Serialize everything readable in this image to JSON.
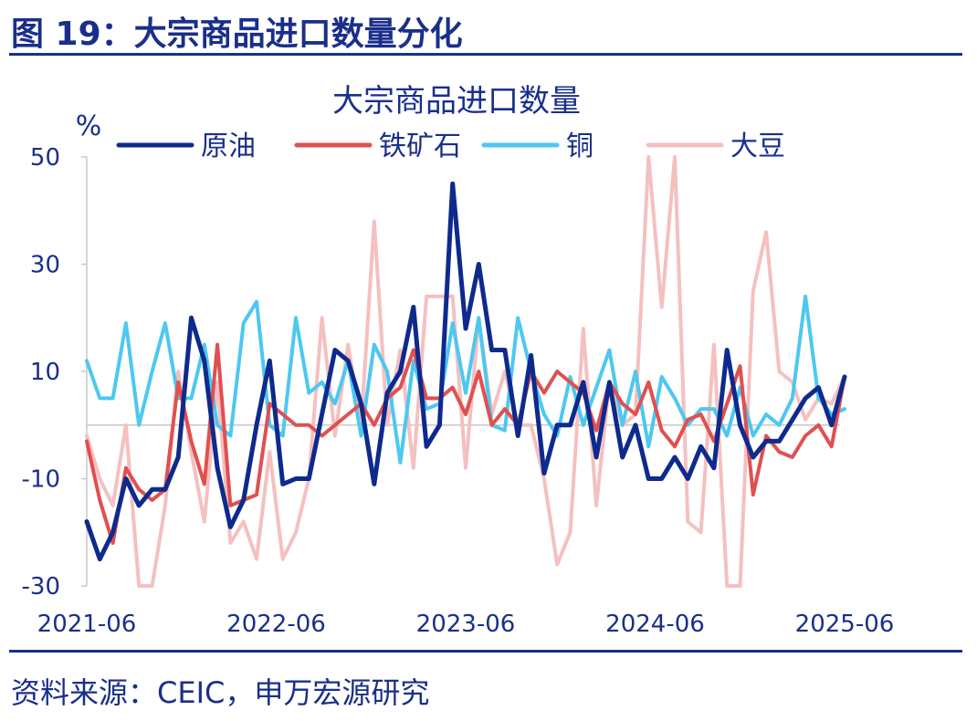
{
  "figure": {
    "title": "图 19：大宗商品进口数量分化",
    "source": "资料来源：CEIC，申万宏源研究"
  },
  "chart_data": {
    "type": "line",
    "title": "大宗商品进口数量",
    "ylabel": "%",
    "xlabel": "",
    "ylim": [
      -30,
      50
    ],
    "yticks": [
      50,
      30,
      10,
      -10,
      -30
    ],
    "xtick_labels": [
      "2021-06",
      "2022-06",
      "2023-06",
      "2024-06",
      "2025-06"
    ],
    "x_start": "2021-06",
    "x_end": "2025-06",
    "grid": false,
    "legend_position": "top",
    "series": [
      {
        "name": "原油",
        "color": "#0d2a8c",
        "width": 5,
        "values": [
          -18,
          -25,
          -20,
          -10,
          -15,
          -12,
          -12,
          -6,
          20,
          12,
          -8,
          -19,
          -14,
          0,
          12,
          -11,
          -10,
          -10,
          2,
          14,
          12,
          4,
          -11,
          6,
          10,
          22,
          -4,
          0,
          45,
          18,
          30,
          14,
          14,
          -2,
          13,
          -9,
          0,
          0,
          8,
          -6,
          8,
          -6,
          0,
          -10,
          -10,
          -6,
          -10,
          -4,
          -8,
          14,
          0,
          -6,
          -3,
          -3,
          1,
          5,
          7,
          0,
          9
        ]
      },
      {
        "name": "铁矿石",
        "color": "#e05050",
        "width": 4,
        "values": [
          -3,
          -14,
          -22,
          -8,
          -12,
          -14,
          -12,
          8,
          -3,
          -11,
          15,
          -15,
          -14,
          -13,
          4,
          2,
          0,
          0,
          -2,
          0,
          2,
          4,
          0,
          5,
          7,
          14,
          5,
          5,
          7,
          2,
          10,
          0,
          3,
          0,
          10,
          6,
          10,
          8,
          6,
          -1,
          8,
          4,
          2,
          8,
          -1,
          -4,
          1,
          2,
          -3,
          4,
          11,
          -13,
          -2,
          -5,
          -6,
          -2,
          0,
          -4,
          9
        ]
      },
      {
        "name": "铜",
        "color": "#4dc8f0",
        "width": 4,
        "values": [
          12,
          5,
          5,
          19,
          0,
          10,
          19,
          5,
          5,
          15,
          0,
          -2,
          19,
          23,
          0,
          -2,
          20,
          6,
          8,
          4,
          12,
          -2,
          15,
          10,
          -7,
          12,
          3,
          4,
          19,
          6,
          20,
          0,
          -1,
          20,
          10,
          2,
          -2,
          9,
          0,
          7,
          14,
          0,
          10,
          -4,
          9,
          5,
          0,
          3,
          3,
          -2,
          7,
          -2,
          2,
          0,
          5,
          24,
          5,
          2,
          3
        ]
      },
      {
        "name": "大豆",
        "color": "#f4c0c0",
        "width": 4,
        "values": [
          -2,
          -10,
          -15,
          0,
          -30,
          -30,
          -15,
          10,
          -5,
          -18,
          8,
          -22,
          -18,
          -25,
          -5,
          -25,
          -20,
          -10,
          20,
          -2,
          15,
          0,
          38,
          0,
          14,
          -8,
          24,
          24,
          24,
          -8,
          20,
          2,
          10,
          0,
          0,
          -10,
          -26,
          -20,
          18,
          -15,
          8,
          0,
          2,
          50,
          22,
          50,
          -18,
          -20,
          15,
          -30,
          -30,
          25,
          36,
          10,
          8,
          1,
          5,
          4,
          9
        ]
      }
    ]
  }
}
